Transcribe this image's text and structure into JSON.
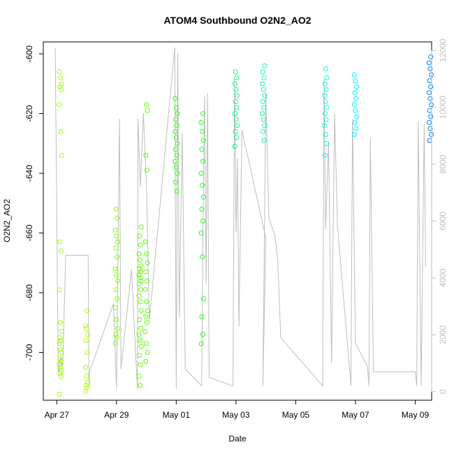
{
  "chart_data": {
    "type": "scatter",
    "title": "ATOM4 Southbound O2N2_AO2",
    "xlabel": "Date",
    "ylabel": "O2N2_AO2",
    "x_ticks": [
      "Apr 27",
      "Apr 29",
      "May 01",
      "May 03",
      "May 05",
      "May 07",
      "May 09"
    ],
    "y_ticks": [
      -600,
      -620,
      -640,
      -660,
      -680,
      -700
    ],
    "ylim": [
      -716,
      -596
    ],
    "y2_ticks": [
      0,
      2000,
      4000,
      6000,
      8000,
      10000,
      12000
    ],
    "y2lim": [
      -300,
      12300
    ],
    "xlim_days_from_apr27": [
      -0.45,
      12.55
    ],
    "marker": "open-circle",
    "color_scale": "hue by time: yellow-green (Apr 27) to blue (May 09)",
    "secondary_line_color": "#bebebe",
    "clusters": [
      {
        "date": "2016-04-27T03:00",
        "values": [
          -606,
          -608,
          -610,
          -611,
          -612,
          -617,
          -626,
          -634,
          -663,
          -666,
          -679,
          -690,
          -693,
          -695,
          -696,
          -697,
          -699,
          -700,
          -702,
          -703,
          -704,
          -705,
          -706,
          -707,
          -708,
          -714
        ],
        "color": "#9cff00"
      },
      {
        "date": "2016-04-28T00:00",
        "values": [
          -686,
          -691,
          -692,
          -694,
          -696,
          -700,
          -705,
          -708,
          -710,
          -711,
          -712,
          -713
        ],
        "color": "#a6ff00"
      },
      {
        "date": "2016-04-29T00:00",
        "values": [
          -652,
          -655,
          -659,
          -661,
          -663,
          -665,
          -668,
          -672,
          -674,
          -676,
          -679,
          -682,
          -685,
          -689,
          -692,
          -694,
          -695,
          -697
        ],
        "color": "#7dff00"
      },
      {
        "date": "2016-04-29T19:00",
        "values": [
          -658,
          -661,
          -664,
          -667,
          -669,
          -671,
          -672,
          -673,
          -674,
          -675,
          -676,
          -677,
          -679,
          -681,
          -683,
          -686,
          -689,
          -692,
          -694,
          -696,
          -698,
          -701,
          -704,
          -708,
          -711
        ],
        "color": "#5cff00"
      },
      {
        "date": "2016-04-30T00:00",
        "values": [
          -617,
          -619,
          -634,
          -639,
          -663,
          -667,
          -670,
          -673,
          -676,
          -679,
          -683,
          -686,
          -688,
          -690,
          -693,
          -697,
          -700,
          -703
        ],
        "color": "#56ff00"
      },
      {
        "date": "2016-05-01T00:00",
        "values": [
          -615,
          -618,
          -620,
          -622,
          -624,
          -626,
          -628,
          -630,
          -632,
          -634,
          -636,
          -638,
          -640,
          -643,
          -646
        ],
        "color": "#28ff00"
      },
      {
        "date": "2016-05-01T21:00",
        "values": [
          -620,
          -623,
          -626,
          -629,
          -632,
          -636,
          -640,
          -644,
          -648,
          -652,
          -656,
          -660,
          -668,
          -682,
          -688,
          -694,
          -697
        ],
        "color": "#1aff1a"
      },
      {
        "date": "2016-05-03T00:00",
        "values": [
          -606,
          -608,
          -610,
          -612,
          -614,
          -616,
          -618,
          -620,
          -622,
          -624,
          -626,
          -628,
          -631
        ],
        "color": "#00ff7a"
      },
      {
        "date": "2016-05-03T22:00",
        "values": [
          -604,
          -606,
          -608,
          -610,
          -612,
          -614,
          -616,
          -618,
          -620,
          -622,
          -624,
          -626,
          -629
        ],
        "color": "#00ff99"
      },
      {
        "date": "2016-05-06T00:00",
        "values": [
          -605,
          -608,
          -610,
          -612,
          -614,
          -616,
          -618,
          -620,
          -622,
          -624,
          -627,
          -630,
          -634
        ],
        "color": "#00ffe6"
      },
      {
        "date": "2016-05-07T00:00",
        "values": [
          -607,
          -609,
          -611,
          -613,
          -615,
          -617,
          -619,
          -621,
          -623,
          -625,
          -627
        ],
        "color": "#00eeff"
      },
      {
        "date": "2016-05-09T12:00",
        "values": [
          -601,
          -603,
          -605,
          -607,
          -609,
          -611,
          -613,
          -615,
          -617,
          -619,
          -621,
          -623,
          -625,
          -627,
          -629
        ],
        "color": "#0080ff"
      }
    ],
    "secondary_series": [
      [
        -0.05,
        12100
      ],
      [
        0.05,
        600
      ],
      [
        0.12,
        1200
      ],
      [
        0.2,
        900
      ],
      [
        0.3,
        4800
      ],
      [
        1.05,
        4800
      ],
      [
        1.08,
        200
      ],
      [
        1.1,
        700
      ],
      [
        1.9,
        3100
      ],
      [
        2.0,
        100
      ],
      [
        2.1,
        9600
      ],
      [
        2.15,
        800
      ],
      [
        2.5,
        4300
      ],
      [
        2.7,
        100
      ],
      [
        2.72,
        9600
      ],
      [
        2.8,
        7200
      ],
      [
        2.9,
        9800
      ],
      [
        3.0,
        7300
      ],
      [
        3.1,
        2500
      ],
      [
        3.95,
        12100
      ],
      [
        4.0,
        100
      ],
      [
        4.05,
        11900
      ],
      [
        4.1,
        2600
      ],
      [
        4.2,
        9100
      ],
      [
        4.3,
        800
      ],
      [
        4.85,
        200
      ],
      [
        4.9,
        6200
      ],
      [
        4.95,
        10400
      ],
      [
        5.0,
        3800
      ],
      [
        5.05,
        10500
      ],
      [
        5.1,
        500
      ],
      [
        5.9,
        200
      ],
      [
        5.95,
        11000
      ],
      [
        6.0,
        5600
      ],
      [
        6.05,
        8200
      ],
      [
        6.1,
        2300
      ],
      [
        6.2,
        9200
      ],
      [
        7.0,
        5400
      ],
      [
        6.9,
        200
      ],
      [
        7.0,
        10500
      ],
      [
        7.1,
        6100
      ],
      [
        7.3,
        5500
      ],
      [
        7.4,
        4600
      ],
      [
        7.5,
        1900
      ],
      [
        8.9,
        200
      ],
      [
        8.95,
        11000
      ],
      [
        9.0,
        5700
      ],
      [
        9.1,
        8800
      ],
      [
        9.2,
        1000
      ],
      [
        9.3,
        9800
      ],
      [
        9.4,
        5800
      ],
      [
        9.85,
        200
      ],
      [
        9.9,
        9600
      ],
      [
        10.0,
        1700
      ],
      [
        10.4,
        900
      ],
      [
        10.45,
        200
      ],
      [
        10.5,
        8900
      ],
      [
        10.6,
        700
      ],
      [
        12.0,
        700
      ],
      [
        12.05,
        200
      ],
      [
        12.1,
        9500
      ],
      [
        12.2,
        200
      ],
      [
        12.3,
        9400
      ],
      [
        12.35,
        4400
      ]
    ]
  }
}
